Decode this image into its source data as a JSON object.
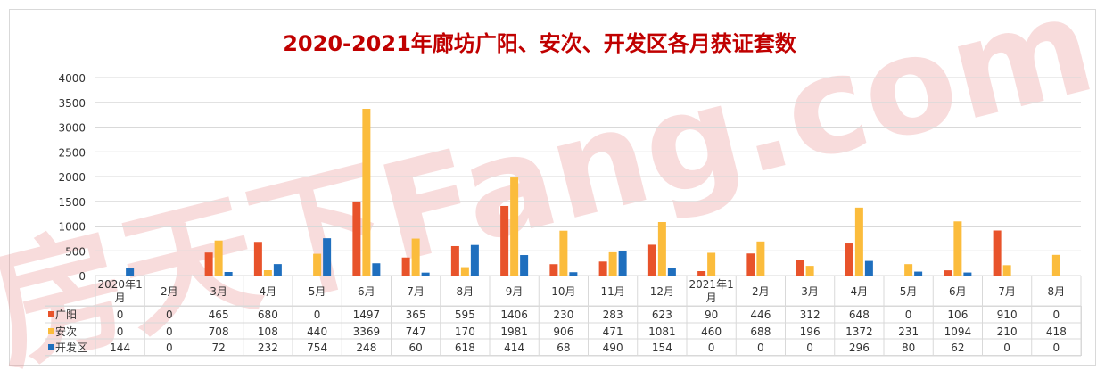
{
  "chart_data": {
    "type": "bar",
    "title": "2020-2021年廊坊广阳、安次、开发区各月获证套数",
    "watermark": "房天下Fang.com",
    "categories": [
      "2020年1月",
      "2月",
      "3月",
      "4月",
      "5月",
      "6月",
      "7月",
      "8月",
      "9月",
      "10月",
      "11月",
      "12月",
      "2021年1月",
      "2月",
      "3月",
      "4月",
      "5月",
      "6月",
      "7月",
      "8月"
    ],
    "series": [
      {
        "name": "广阳",
        "color": "#e8532b",
        "values": [
          0,
          0,
          465,
          680,
          0,
          1497,
          365,
          595,
          1406,
          230,
          283,
          623,
          90,
          446,
          312,
          648,
          0,
          106,
          910,
          0
        ]
      },
      {
        "name": "安次",
        "color": "#fbbc3c",
        "values": [
          0,
          0,
          708,
          108,
          440,
          3369,
          747,
          170,
          1981,
          906,
          471,
          1081,
          460,
          688,
          196,
          1372,
          231,
          1094,
          210,
          418
        ]
      },
      {
        "name": "开发区",
        "color": "#1f6fbe",
        "values": [
          144,
          0,
          72,
          232,
          754,
          248,
          60,
          618,
          414,
          68,
          490,
          154,
          0,
          0,
          0,
          296,
          80,
          62,
          0,
          0
        ]
      }
    ],
    "ylim": [
      0,
      4000
    ],
    "yticks": [
      0,
      500,
      1000,
      1500,
      2000,
      2500,
      3000,
      3500,
      4000
    ],
    "grid": true,
    "legend": "data-table",
    "title_color": "#c00000"
  }
}
